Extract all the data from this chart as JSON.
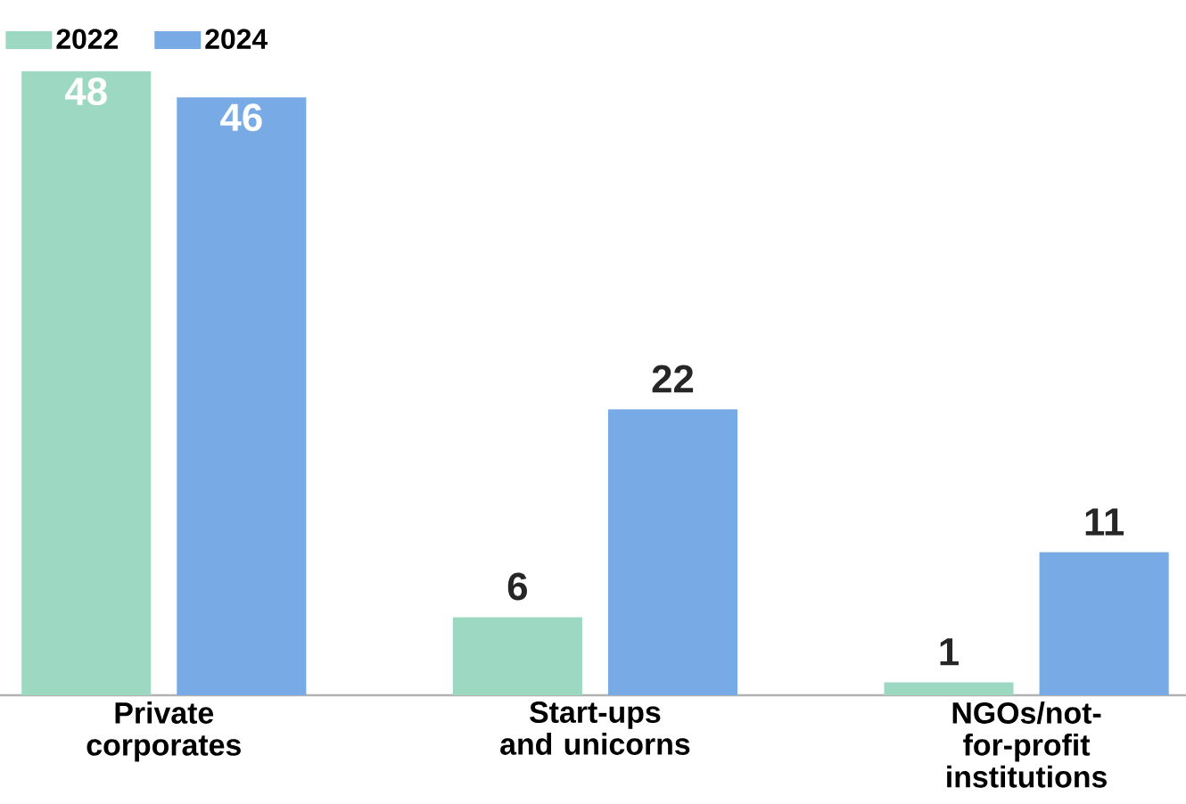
{
  "chart_data": {
    "type": "bar",
    "categories": [
      "Private corporates",
      "Start-ups and unicorns",
      "NGOs/not-for-profit institutions"
    ],
    "series": [
      {
        "name": "2022",
        "color": "#9dd9c2",
        "values": [
          48,
          6,
          1
        ]
      },
      {
        "name": "2024",
        "color": "#78aae6",
        "values": [
          46,
          22,
          11
        ]
      }
    ],
    "data_labels": true,
    "legend": "top left"
  }
}
